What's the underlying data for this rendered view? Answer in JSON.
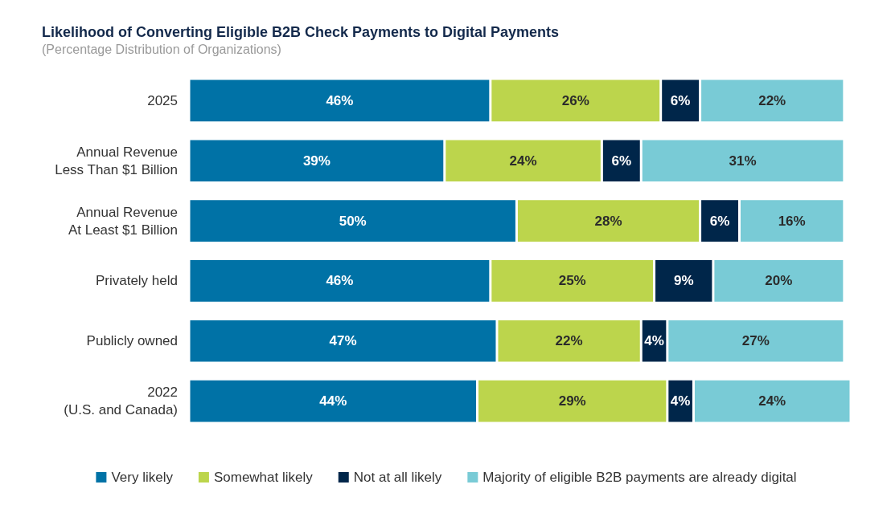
{
  "chart_data": {
    "type": "bar",
    "orientation": "horizontal",
    "stacked": true,
    "title": "Likelihood of Converting Eligible B2B Check Payments to Digital Payments",
    "subtitle": "(Percentage Distribution of Organizations)",
    "categories": [
      "2025",
      "Annual Revenue\nLess Than $1 Billion",
      "Annual Revenue\nAt Least $1 Billion",
      "Privately held",
      "Publicly owned",
      "2022\n(U.S. and Canada)"
    ],
    "series": [
      {
        "name": "Very likely",
        "color": "#0072a6",
        "values": [
          46,
          39,
          50,
          46,
          47,
          44
        ],
        "value_labels": [
          "46%",
          "39%",
          "50%",
          "46%",
          "47%",
          "44%"
        ]
      },
      {
        "name": "Somewhat likely",
        "color": "#bcd54c",
        "values": [
          26,
          24,
          28,
          25,
          22,
          29
        ],
        "value_labels": [
          "26%",
          "24%",
          "28%",
          "25%",
          "22%",
          "29%"
        ]
      },
      {
        "name": "Not at all likely",
        "color": "#00264a",
        "values": [
          6,
          6,
          6,
          9,
          4,
          4
        ],
        "value_labels": [
          "6%",
          "6%",
          "6%",
          "9%",
          "4%",
          "4%"
        ]
      },
      {
        "name": "Majority of eligible B2B payments are already digital",
        "color": "#79cbd6",
        "values": [
          22,
          31,
          16,
          20,
          27,
          24
        ],
        "value_labels": [
          "22%",
          "31%",
          "16%",
          "20%",
          "27%",
          "24%"
        ]
      }
    ],
    "legend": "bottom",
    "grid": false
  }
}
